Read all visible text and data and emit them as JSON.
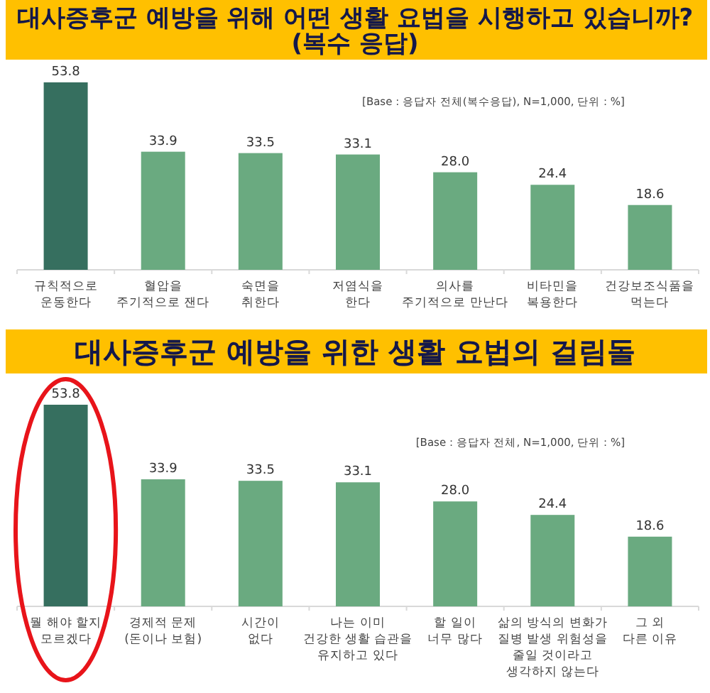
{
  "chart_data": [
    {
      "type": "bar",
      "title": "대사증후군 예방을 위해 어떤 생활 요법을 시행하고 있습니까?\n(복수 응답)",
      "categories": [
        "규칙적으로\n운동한다",
        "혈압을\n주기적으로 잰다",
        "숙면을\n취한다",
        "저염식을\n한다",
        "의사를\n주기적으로 만난다",
        "비타민을\n복용한다",
        "건강보조식품을\n먹는다"
      ],
      "values": [
        53.8,
        33.9,
        33.5,
        33.1,
        28.0,
        24.4,
        18.6
      ],
      "value_labels": [
        "53.8",
        "33.9",
        "33.5",
        "33.1",
        "28.0",
        "24.4",
        "18.6"
      ],
      "colors": [
        "#366f5f",
        "#6aaa80",
        "#6aaa80",
        "#6aaa80",
        "#6aaa80",
        "#6aaa80",
        "#6aaa80"
      ],
      "annotations": [
        "[Base : 응답자 전체(복수응답), N=1,000, 단위 : %]"
      ]
    },
    {
      "type": "bar",
      "title": "대사증후군 예방을 위한 생활 요법의 걸림돌",
      "categories": [
        "뭘 해야 할지\n모르겠다",
        "경제적 문제\n(돈이나 보험)",
        "시간이\n없다",
        "나는 이미\n건강한 생활 습관을\n유지하고 있다",
        "할 일이\n너무 많다",
        "삶의 방식의 변화가\n질병 발생 위험성을\n줄일 것이라고\n생각하지 않는다",
        "그 외\n다른 이유"
      ],
      "values": [
        53.8,
        33.9,
        33.5,
        33.1,
        28.0,
        24.4,
        18.6
      ],
      "value_labels": [
        "53.8",
        "33.9",
        "33.5",
        "33.1",
        "28.0",
        "24.4",
        "18.6"
      ],
      "colors": [
        "#366f5f",
        "#6aaa80",
        "#6aaa80",
        "#6aaa80",
        "#6aaa80",
        "#6aaa80",
        "#6aaa80"
      ],
      "annotations": [
        "[Base : 응답자 전체, N=1,000, 단위 : %]"
      ]
    }
  ]
}
